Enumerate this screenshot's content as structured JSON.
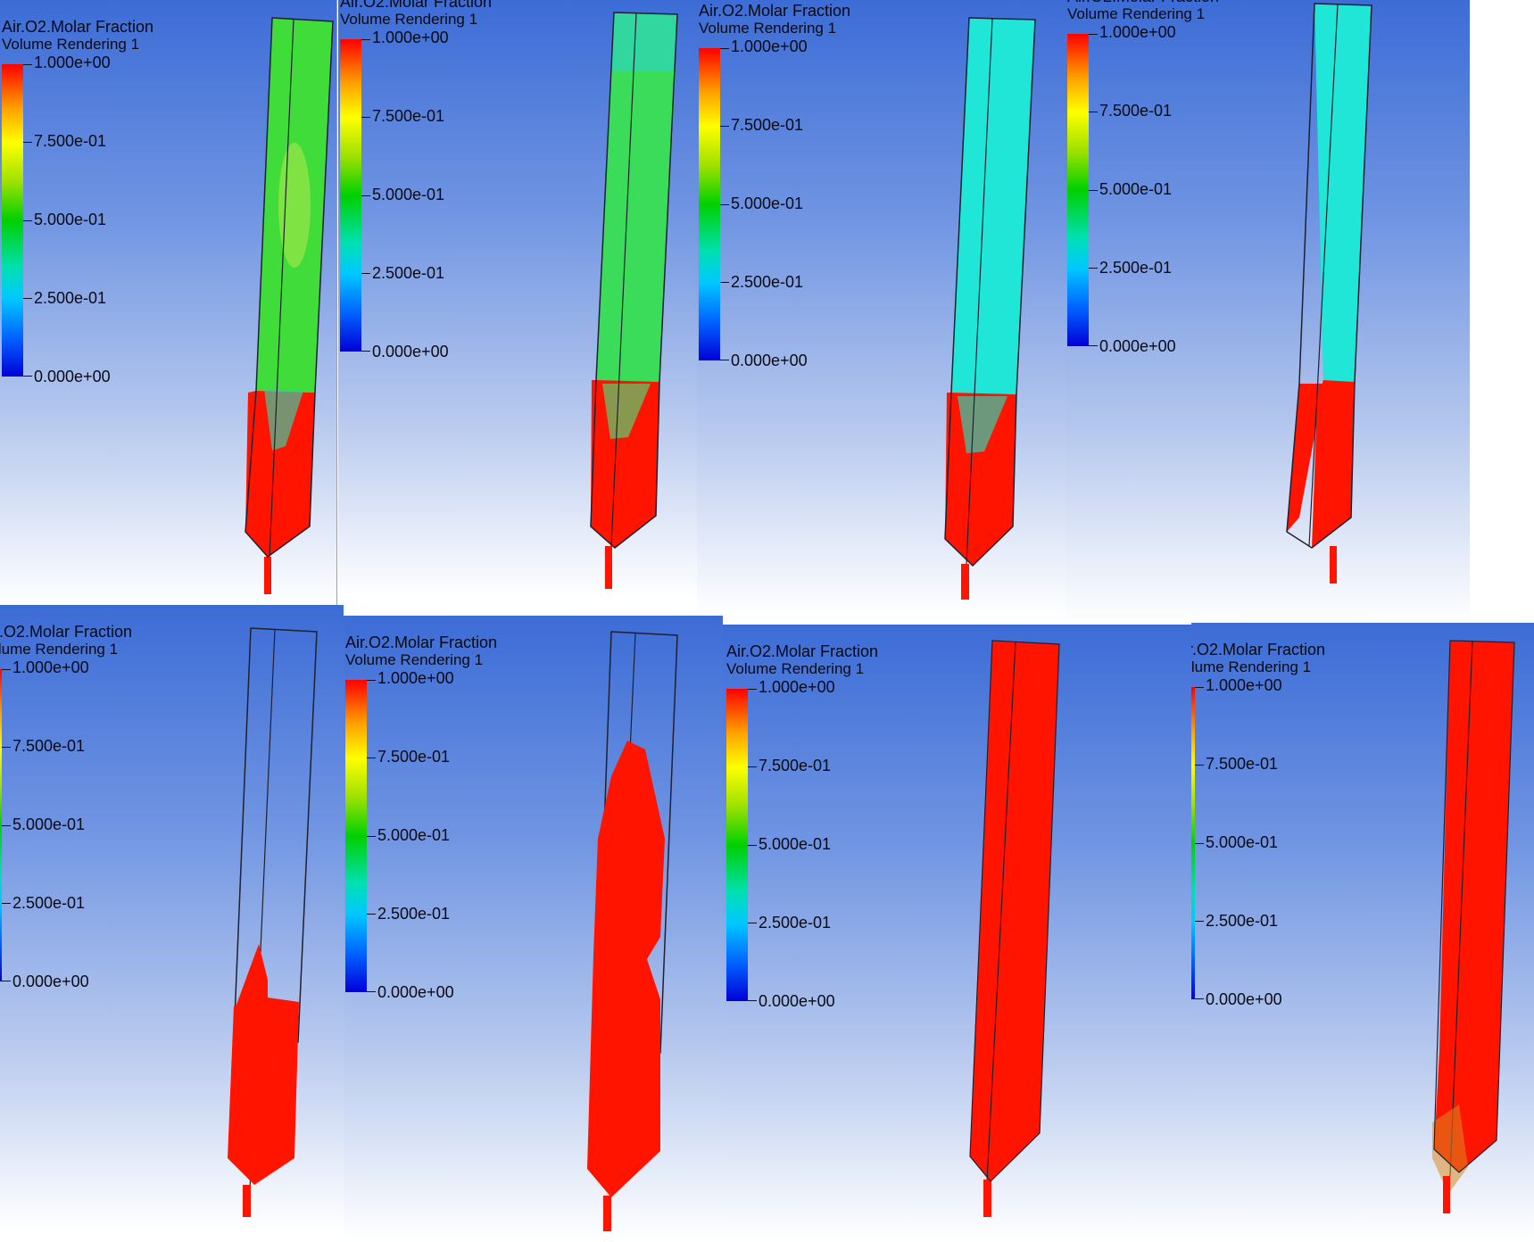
{
  "legend": {
    "title": "Air.O2.Molar Fraction",
    "subtitle": "Volume Rendering 1",
    "ticks": [
      "1.000e+00",
      "7.500e-01",
      "5.000e-01",
      "2.500e-01",
      "0.000e+00"
    ]
  },
  "colors": {
    "red": "#ff1400",
    "green": "#3fdc3a",
    "cyan": "#20e6d8",
    "outline": "#202030"
  },
  "panels": [
    {
      "id": "top-1",
      "upper_fill": "green"
    },
    {
      "id": "top-2",
      "upper_fill": "green-cyan"
    },
    {
      "id": "top-3",
      "upper_fill": "cyan"
    },
    {
      "id": "top-4",
      "upper_fill": "cyan"
    },
    {
      "id": "bottom-1",
      "upper_fill": "empty"
    },
    {
      "id": "bottom-2",
      "upper_fill": "empty"
    },
    {
      "id": "bottom-3",
      "upper_fill": "red"
    },
    {
      "id": "bottom-4",
      "upper_fill": "red"
    }
  ]
}
